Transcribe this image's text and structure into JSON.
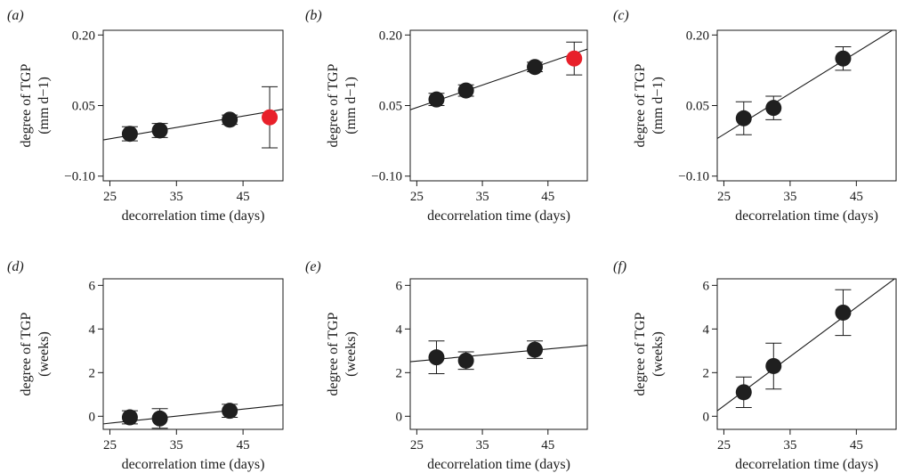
{
  "colors": {
    "point": "#1f1f1f",
    "highlight": "#e8202a",
    "axis": "#1a1a1a"
  },
  "chart_data": [
    {
      "panel_label": "(a)",
      "type": "scatter",
      "xlabel": "decorrelation time (days)",
      "ylabel_lines": [
        "degree of TGP",
        "(mm d−1)"
      ],
      "xlim": [
        24,
        51
      ],
      "ylim": [
        -0.11,
        0.21
      ],
      "xticks": [
        25,
        35,
        45
      ],
      "xtick_labels": [
        "25",
        "35",
        "45"
      ],
      "yticks": [
        -0.1,
        0.05,
        0.2
      ],
      "ytick_labels": [
        "−0.10",
        "0.05",
        "0.20"
      ],
      "points": [
        {
          "x": 28,
          "y": -0.01,
          "err": 0.015,
          "highlight": false
        },
        {
          "x": 32.5,
          "y": -0.003,
          "err": 0.015,
          "highlight": false
        },
        {
          "x": 43,
          "y": 0.02,
          "err": 0.01,
          "highlight": false
        },
        {
          "x": 49,
          "y": 0.025,
          "err": 0.065,
          "highlight": true
        }
      ],
      "fit_line": {
        "x": [
          24,
          51
        ],
        "y": [
          -0.023,
          0.042
        ]
      }
    },
    {
      "panel_label": "(b)",
      "type": "scatter",
      "xlabel": "decorrelation time (days)",
      "ylabel_lines": [
        "degree of TGP",
        "(mm d−1)"
      ],
      "xlim": [
        24,
        51
      ],
      "ylim": [
        -0.11,
        0.21
      ],
      "xticks": [
        25,
        35,
        45
      ],
      "xtick_labels": [
        "25",
        "35",
        "45"
      ],
      "yticks": [
        -0.1,
        0.05,
        0.2
      ],
      "ytick_labels": [
        "−0.10",
        "0.05",
        "0.20"
      ],
      "points": [
        {
          "x": 28,
          "y": 0.063,
          "err": 0.013,
          "highlight": false
        },
        {
          "x": 32.5,
          "y": 0.082,
          "err": 0.012,
          "highlight": false
        },
        {
          "x": 43,
          "y": 0.132,
          "err": 0.01,
          "highlight": false
        },
        {
          "x": 49,
          "y": 0.15,
          "err": 0.035,
          "highlight": true
        }
      ],
      "fit_line": {
        "x": [
          24,
          51
        ],
        "y": [
          0.041,
          0.17
        ]
      }
    },
    {
      "panel_label": "(c)",
      "type": "scatter",
      "xlabel": "decorrelation time (days)",
      "ylabel_lines": [
        "degree of TGP",
        "(mm d−1)"
      ],
      "xlim": [
        24,
        51
      ],
      "ylim": [
        -0.11,
        0.21
      ],
      "xticks": [
        25,
        35,
        45
      ],
      "xtick_labels": [
        "25",
        "35",
        "45"
      ],
      "yticks": [
        -0.1,
        0.05,
        0.2
      ],
      "ytick_labels": [
        "−0.10",
        "0.05",
        "0.20"
      ],
      "points": [
        {
          "x": 28,
          "y": 0.023,
          "err": 0.035,
          "highlight": false
        },
        {
          "x": 32.5,
          "y": 0.045,
          "err": 0.025,
          "highlight": false
        },
        {
          "x": 43,
          "y": 0.15,
          "err": 0.025,
          "highlight": false
        }
      ],
      "fit_line": {
        "x": [
          24,
          51
        ],
        "y": [
          -0.02,
          0.215
        ]
      }
    },
    {
      "panel_label": "(d)",
      "type": "scatter",
      "xlabel": "decorrelation time (days)",
      "ylabel_lines": [
        "degree of TGP",
        "(weeks)"
      ],
      "xlim": [
        24,
        51
      ],
      "ylim": [
        -0.6,
        6.3
      ],
      "xticks": [
        25,
        35,
        45
      ],
      "xtick_labels": [
        "25",
        "35",
        "45"
      ],
      "yticks": [
        0,
        2,
        4,
        6
      ],
      "ytick_labels": [
        "0",
        "2",
        "4",
        "6"
      ],
      "points": [
        {
          "x": 28,
          "y": -0.05,
          "err": 0.3,
          "highlight": false
        },
        {
          "x": 32.5,
          "y": -0.1,
          "err": 0.45,
          "highlight": false
        },
        {
          "x": 43,
          "y": 0.25,
          "err": 0.3,
          "highlight": false
        }
      ],
      "fit_line": {
        "x": [
          24,
          51
        ],
        "y": [
          -0.35,
          0.52
        ]
      }
    },
    {
      "panel_label": "(e)",
      "type": "scatter",
      "xlabel": "decorrelation time (days)",
      "ylabel_lines": [
        "degree of TGP",
        "(weeks)"
      ],
      "xlim": [
        24,
        51
      ],
      "ylim": [
        -0.6,
        6.3
      ],
      "xticks": [
        25,
        35,
        45
      ],
      "xtick_labels": [
        "25",
        "35",
        "45"
      ],
      "yticks": [
        0,
        2,
        4,
        6
      ],
      "ytick_labels": [
        "0",
        "2",
        "4",
        "6"
      ],
      "points": [
        {
          "x": 28,
          "y": 2.7,
          "err": 0.75,
          "highlight": false
        },
        {
          "x": 32.5,
          "y": 2.55,
          "err": 0.4,
          "highlight": false
        },
        {
          "x": 43,
          "y": 3.05,
          "err": 0.4,
          "highlight": false
        }
      ],
      "fit_line": {
        "x": [
          24,
          51
        ],
        "y": [
          2.5,
          3.25
        ]
      }
    },
    {
      "panel_label": "(f)",
      "type": "scatter",
      "xlabel": "decorrelation time (days)",
      "ylabel_lines": [
        "degree of TGP",
        "(weeks)"
      ],
      "xlim": [
        24,
        51
      ],
      "ylim": [
        -0.6,
        6.3
      ],
      "xticks": [
        25,
        35,
        45
      ],
      "xtick_labels": [
        "25",
        "35",
        "45"
      ],
      "yticks": [
        0,
        2,
        4,
        6
      ],
      "ytick_labels": [
        "0",
        "2",
        "4",
        "6"
      ],
      "points": [
        {
          "x": 28,
          "y": 1.1,
          "err": 0.7,
          "highlight": false
        },
        {
          "x": 32.5,
          "y": 2.3,
          "err": 1.05,
          "highlight": false
        },
        {
          "x": 43,
          "y": 4.75,
          "err": 1.05,
          "highlight": false
        }
      ],
      "fit_line": {
        "x": [
          24,
          51
        ],
        "y": [
          0.25,
          6.35
        ]
      }
    }
  ]
}
